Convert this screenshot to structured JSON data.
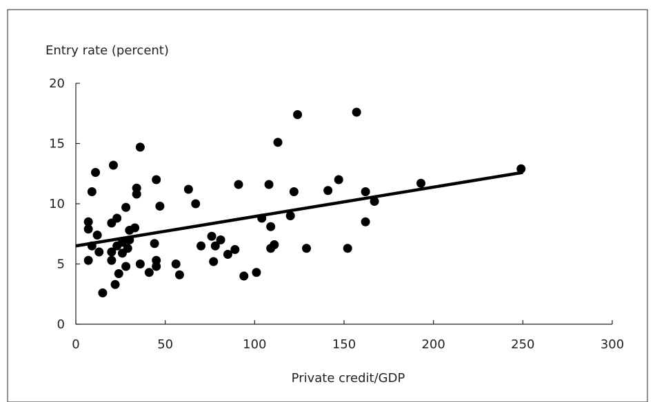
{
  "chart_data": {
    "type": "scatter",
    "ylabel": "Entry rate (percent)",
    "xlabel": "Private credit/GDP",
    "xlim": [
      0,
      300
    ],
    "ylim": [
      0,
      20
    ],
    "x_ticks": [
      "0",
      "50",
      "100",
      "150",
      "200",
      "250",
      "300"
    ],
    "y_ticks": [
      "0",
      "5",
      "10",
      "15",
      "20"
    ],
    "grid": false,
    "legend": "none",
    "marker_color": "#000000",
    "trendline": {
      "x": [
        0,
        250
      ],
      "y": [
        6.5,
        12.6
      ]
    },
    "points": [
      {
        "x": 7,
        "y": 5.3
      },
      {
        "x": 7,
        "y": 7.9
      },
      {
        "x": 7,
        "y": 8.5
      },
      {
        "x": 9,
        "y": 6.5
      },
      {
        "x": 9,
        "y": 11.0
      },
      {
        "x": 11,
        "y": 12.6
      },
      {
        "x": 12,
        "y": 7.4
      },
      {
        "x": 13,
        "y": 6.0
      },
      {
        "x": 15,
        "y": 2.6
      },
      {
        "x": 20,
        "y": 5.3
      },
      {
        "x": 20,
        "y": 6.0
      },
      {
        "x": 20,
        "y": 8.4
      },
      {
        "x": 21,
        "y": 13.2
      },
      {
        "x": 22,
        "y": 3.3
      },
      {
        "x": 23,
        "y": 8.8
      },
      {
        "x": 23,
        "y": 6.5
      },
      {
        "x": 24,
        "y": 4.2
      },
      {
        "x": 26,
        "y": 5.9
      },
      {
        "x": 26,
        "y": 6.8
      },
      {
        "x": 28,
        "y": 4.8
      },
      {
        "x": 28,
        "y": 9.7
      },
      {
        "x": 29,
        "y": 6.3
      },
      {
        "x": 30,
        "y": 7.0
      },
      {
        "x": 30,
        "y": 7.8
      },
      {
        "x": 33,
        "y": 8.0
      },
      {
        "x": 34,
        "y": 10.8
      },
      {
        "x": 34,
        "y": 11.3
      },
      {
        "x": 36,
        "y": 5.0
      },
      {
        "x": 36,
        "y": 14.7
      },
      {
        "x": 41,
        "y": 4.3
      },
      {
        "x": 44,
        "y": 6.7
      },
      {
        "x": 45,
        "y": 4.8
      },
      {
        "x": 45,
        "y": 5.3
      },
      {
        "x": 45,
        "y": 12.0
      },
      {
        "x": 47,
        "y": 9.8
      },
      {
        "x": 56,
        "y": 5.0
      },
      {
        "x": 58,
        "y": 4.1
      },
      {
        "x": 63,
        "y": 11.2
      },
      {
        "x": 67,
        "y": 10.0
      },
      {
        "x": 70,
        "y": 6.5
      },
      {
        "x": 76,
        "y": 7.3
      },
      {
        "x": 77,
        "y": 5.2
      },
      {
        "x": 78,
        "y": 6.5
      },
      {
        "x": 81,
        "y": 7.0
      },
      {
        "x": 85,
        "y": 5.8
      },
      {
        "x": 89,
        "y": 6.2
      },
      {
        "x": 91,
        "y": 11.6
      },
      {
        "x": 94,
        "y": 4.0
      },
      {
        "x": 101,
        "y": 4.3
      },
      {
        "x": 104,
        "y": 8.8
      },
      {
        "x": 108,
        "y": 11.6
      },
      {
        "x": 109,
        "y": 6.3
      },
      {
        "x": 109,
        "y": 8.1
      },
      {
        "x": 111,
        "y": 6.6
      },
      {
        "x": 113,
        "y": 15.1
      },
      {
        "x": 120,
        "y": 9.0
      },
      {
        "x": 122,
        "y": 11.0
      },
      {
        "x": 124,
        "y": 17.4
      },
      {
        "x": 129,
        "y": 6.3
      },
      {
        "x": 141,
        "y": 11.1
      },
      {
        "x": 147,
        "y": 12.0
      },
      {
        "x": 152,
        "y": 6.3
      },
      {
        "x": 157,
        "y": 17.6
      },
      {
        "x": 162,
        "y": 11.0
      },
      {
        "x": 162,
        "y": 8.5
      },
      {
        "x": 167,
        "y": 10.2
      },
      {
        "x": 193,
        "y": 11.7
      },
      {
        "x": 249,
        "y": 12.9
      }
    ]
  }
}
